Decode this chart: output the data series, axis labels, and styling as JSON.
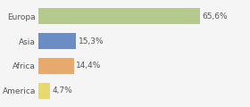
{
  "categories": [
    "Europa",
    "Asia",
    "Africa",
    "America"
  ],
  "values": [
    65.6,
    15.3,
    14.4,
    4.7
  ],
  "labels": [
    "65,6%",
    "15,3%",
    "14,4%",
    "4,7%"
  ],
  "bar_colors": [
    "#b5c98e",
    "#6b8dc4",
    "#e8a96e",
    "#e8d96e"
  ],
  "background_color": "#f5f5f5",
  "xlim": [
    0,
    85
  ],
  "bar_height": 0.65,
  "label_fontsize": 6.5,
  "tick_fontsize": 6.5,
  "grid_color": "#dddddd",
  "text_color": "#555555"
}
